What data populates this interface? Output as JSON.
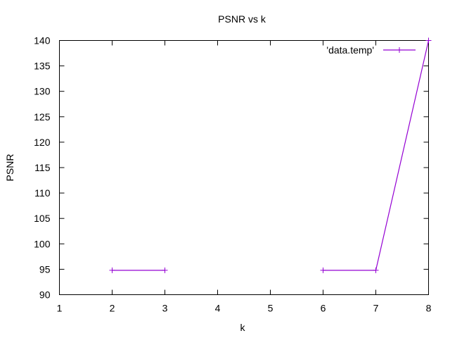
{
  "chart_data": {
    "type": "line",
    "title": "PSNR vs k",
    "xlabel": "k",
    "ylabel": "PSNR",
    "xlim": [
      1,
      8
    ],
    "ylim": [
      90,
      140
    ],
    "xticks": [
      1,
      2,
      3,
      4,
      5,
      6,
      7,
      8
    ],
    "yticks": [
      90,
      95,
      100,
      105,
      110,
      115,
      120,
      125,
      130,
      135,
      140
    ],
    "grid": false,
    "legend_position": "top-right",
    "series": [
      {
        "name": "'data.temp'",
        "color": "#9400d3",
        "segments": [
          [
            {
              "x": 2,
              "y": 94.8
            },
            {
              "x": 3,
              "y": 94.8
            }
          ],
          [
            {
              "x": 6,
              "y": 94.8
            },
            {
              "x": 7,
              "y": 94.8
            },
            {
              "x": 8,
              "y": 140
            }
          ]
        ]
      }
    ]
  }
}
